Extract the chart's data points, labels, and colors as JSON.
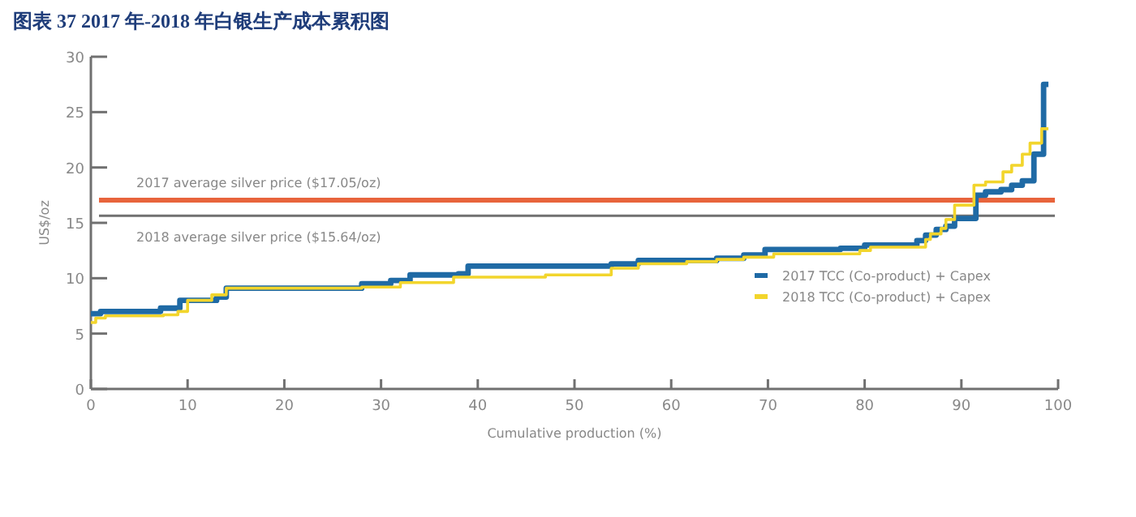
{
  "chart_data": {
    "type": "step",
    "title": "图表 37 2017 年-2018 年白银生产成本累积图",
    "xlabel": "Cumulative production (%)",
    "ylabel": "US$/oz",
    "xlim": [
      0,
      100
    ],
    "xticks": [
      0,
      10,
      20,
      30,
      40,
      50,
      60,
      70,
      80,
      90,
      100
    ],
    "ylim": [
      0,
      30
    ],
    "yticks": [
      0,
      5,
      10,
      15,
      20,
      25,
      30
    ],
    "legend": "right",
    "ref_lines": [
      {
        "axis": "y",
        "value": 17.05,
        "label": "2017 average silver price ($17.05/oz)",
        "color": "#e8643c"
      },
      {
        "axis": "y",
        "value": 15.64,
        "label": "2018 average silver price ($15.64/oz)",
        "color": "#707070"
      }
    ],
    "series": [
      {
        "name": "2017 TCC (Co-product) + Capex",
        "color": "#1f6aa5",
        "x": [
          0,
          1,
          7.2,
          9.2,
          13,
          14,
          28,
          31,
          33,
          38,
          39,
          53.8,
          56.6,
          64.7,
          67.5,
          69.7,
          77.5,
          80,
          85.4,
          86.3,
          87.4,
          88.4,
          89.3,
          91.5,
          92.5,
          94.1,
          95.2,
          96.3,
          97.5,
          98.5,
          99
        ],
        "values": [
          6.8,
          7.0,
          7.3,
          8.0,
          8.3,
          9.1,
          9.5,
          9.8,
          10.3,
          10.4,
          11.1,
          11.3,
          11.6,
          11.8,
          12.1,
          12.6,
          12.7,
          13.0,
          13.4,
          13.9,
          14.4,
          14.7,
          15.4,
          17.5,
          17.8,
          18.0,
          18.4,
          18.8,
          21.2,
          27.5,
          27.5
        ]
      },
      {
        "name": "2018 TCC (Co-product) + Capex",
        "color": "#f2d52c",
        "x": [
          0,
          0.5,
          1.5,
          7.5,
          9,
          10,
          12.5,
          14,
          28,
          32,
          37.5,
          47,
          53.8,
          56.6,
          61.6,
          64.7,
          67.5,
          70.6,
          79.5,
          80.6,
          86.3,
          86.8,
          87.9,
          88.4,
          89.3,
          91.3,
          92.5,
          94.3,
          95.2,
          96.3,
          97.1,
          98.3,
          99
        ],
        "values": [
          6.0,
          6.4,
          6.6,
          6.7,
          7.0,
          8.0,
          8.5,
          9.1,
          9.2,
          9.6,
          10.1,
          10.3,
          10.9,
          11.3,
          11.5,
          11.7,
          11.9,
          12.2,
          12.5,
          12.8,
          13.5,
          14.0,
          14.5,
          15.3,
          16.6,
          18.4,
          18.7,
          19.6,
          20.2,
          21.2,
          22.2,
          23.5,
          23.5
        ]
      }
    ]
  }
}
